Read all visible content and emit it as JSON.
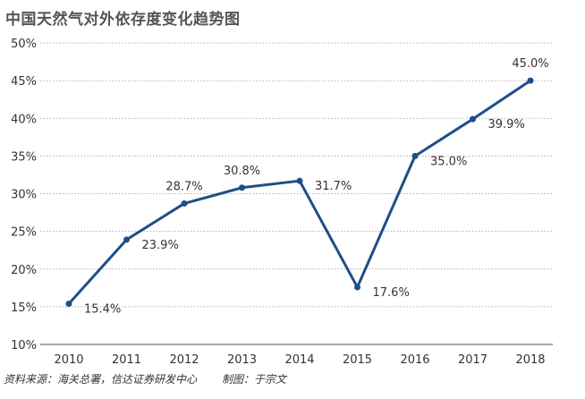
{
  "chart_data": {
    "type": "line",
    "title": "中国天然气对外依存度变化趋势图",
    "categories": [
      "2010",
      "2011",
      "2012",
      "2013",
      "2014",
      "2015",
      "2016",
      "2017",
      "2018"
    ],
    "series": [
      {
        "values": [
          15.4,
          23.9,
          28.7,
          30.8,
          31.7,
          17.6,
          35.0,
          39.9,
          45.0
        ],
        "labels": [
          "15.4%",
          "23.9%",
          "28.7%",
          "30.8%",
          "31.7%",
          "17.6%",
          "35.0%",
          "39.9%",
          "45.0%"
        ],
        "color": "#1f4e87"
      }
    ],
    "ylim": [
      10,
      50
    ],
    "yticks": [
      10,
      15,
      20,
      25,
      30,
      35,
      40,
      45,
      50
    ],
    "ytick_labels": [
      "10%",
      "15%",
      "20%",
      "25%",
      "30%",
      "35%",
      "40%",
      "45%",
      "50%"
    ],
    "xlabel": "",
    "ylabel": "",
    "grid": "horizontal dotted"
  },
  "footer": {
    "source": "资料来源：海关总署，信达证券研发中心",
    "author": "制图：于宗文"
  }
}
